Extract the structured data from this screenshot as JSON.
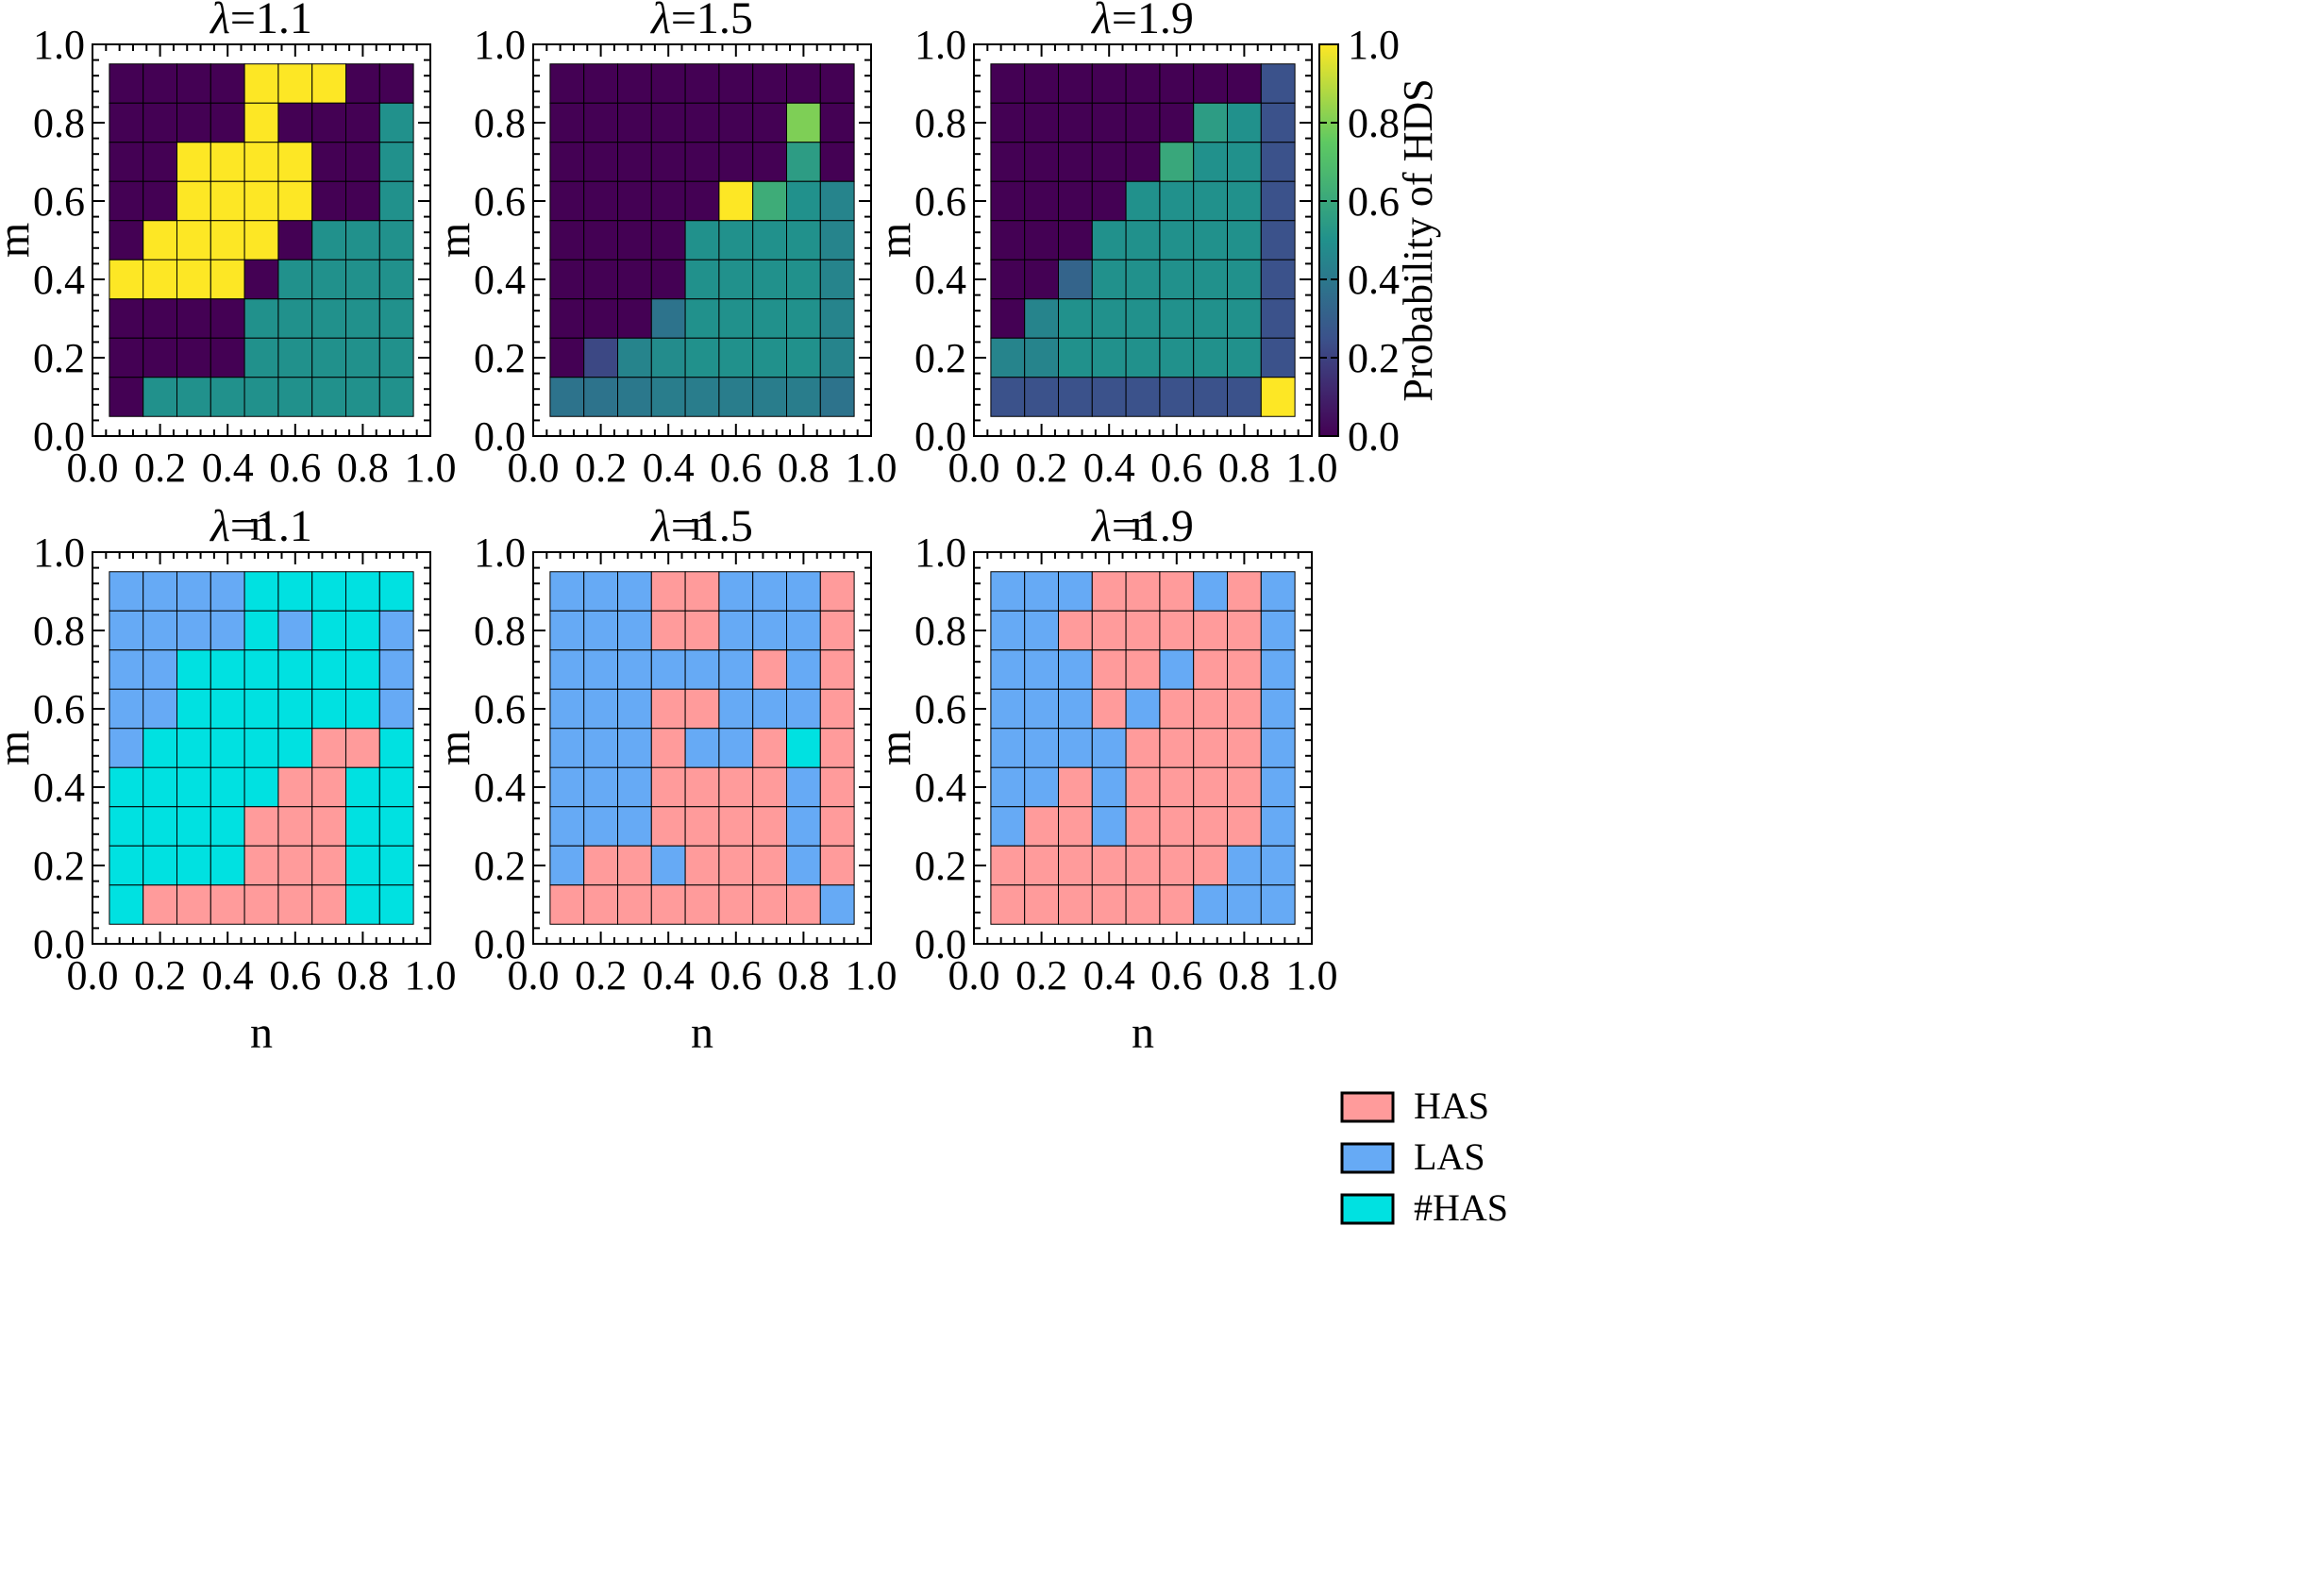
{
  "colors": {
    "HAS": "#FF9B9B",
    "LAS": "#66AAF5",
    "#HAS": "#00E1E1",
    "viridis_stops": [
      "#440154",
      "#3b528b",
      "#21918c",
      "#5ec962",
      "#fde725"
    ]
  },
  "chart_data": [
    {
      "type": "heatmap",
      "title_symbol": "λ",
      "title_value": "=1.1",
      "xlabel": "n",
      "ylabel": "m",
      "xlim": [
        0.0,
        1.0
      ],
      "ylim": [
        0.0,
        1.0
      ],
      "xticks": [
        "0.0",
        "0.2",
        "0.4",
        "0.6",
        "0.8",
        "1.0"
      ],
      "yticks": [
        "0.0",
        "0.2",
        "0.4",
        "0.6",
        "0.8",
        "1.0"
      ],
      "n_values": [
        0.1,
        0.2,
        0.3,
        0.4,
        0.5,
        0.6,
        0.7,
        0.8,
        0.9
      ],
      "m_values": [
        0.1,
        0.2,
        0.3,
        0.4,
        0.5,
        0.6,
        0.7,
        0.8,
        0.9
      ],
      "grid_rows_top_to_bottom": [
        [
          0,
          0,
          0,
          0,
          1,
          1,
          1,
          0,
          0
        ],
        [
          0,
          0,
          0,
          0,
          1,
          0,
          0,
          0,
          0.5
        ],
        [
          0,
          0,
          1,
          1,
          1,
          1,
          0,
          0,
          0.5
        ],
        [
          0,
          0,
          1,
          1,
          1,
          1,
          0,
          0,
          0.5
        ],
        [
          0,
          1,
          1,
          1,
          1,
          0,
          0.5,
          0.5,
          0.5
        ],
        [
          1,
          1,
          1,
          1,
          0,
          0.5,
          0.5,
          0.5,
          0.5
        ],
        [
          0,
          0,
          0,
          0,
          0.5,
          0.5,
          0.5,
          0.5,
          0.5
        ],
        [
          0,
          0,
          0,
          0,
          0.5,
          0.5,
          0.5,
          0.5,
          0.5
        ],
        [
          0,
          0.5,
          0.5,
          0.5,
          0.5,
          0.5,
          0.5,
          0.5,
          0.5
        ]
      ]
    },
    {
      "type": "heatmap",
      "title_symbol": "λ",
      "title_value": "=1.5",
      "xlabel": "n",
      "ylabel": "m",
      "xlim": [
        0.0,
        1.0
      ],
      "ylim": [
        0.0,
        1.0
      ],
      "xticks": [
        "0.0",
        "0.2",
        "0.4",
        "0.6",
        "0.8",
        "1.0"
      ],
      "yticks": [
        "0.0",
        "0.2",
        "0.4",
        "0.6",
        "0.8",
        "1.0"
      ],
      "n_values": [
        0.1,
        0.2,
        0.3,
        0.4,
        0.5,
        0.6,
        0.7,
        0.8,
        0.9
      ],
      "m_values": [
        0.1,
        0.2,
        0.3,
        0.4,
        0.5,
        0.6,
        0.7,
        0.8,
        0.9
      ],
      "grid_rows_top_to_bottom": [
        [
          0,
          0,
          0,
          0,
          0,
          0,
          0,
          0,
          0
        ],
        [
          0,
          0,
          0,
          0,
          0,
          0,
          0,
          0.8,
          0
        ],
        [
          0,
          0,
          0,
          0,
          0,
          0,
          0,
          0.55,
          0
        ],
        [
          0,
          0,
          0,
          0,
          0,
          1,
          0.62,
          0.5,
          0.45
        ],
        [
          0,
          0,
          0,
          0,
          0.5,
          0.5,
          0.5,
          0.5,
          0.45
        ],
        [
          0,
          0,
          0,
          0,
          0.5,
          0.5,
          0.5,
          0.5,
          0.45
        ],
        [
          0,
          0,
          0,
          0.38,
          0.5,
          0.5,
          0.5,
          0.5,
          0.45
        ],
        [
          0,
          0.22,
          0.45,
          0.48,
          0.5,
          0.5,
          0.5,
          0.5,
          0.45
        ],
        [
          0.38,
          0.38,
          0.4,
          0.42,
          0.42,
          0.42,
          0.42,
          0.42,
          0.38
        ]
      ]
    },
    {
      "type": "heatmap",
      "title_symbol": "λ",
      "title_value": "=1.9",
      "xlabel": "n",
      "ylabel": "m",
      "xlim": [
        0.0,
        1.0
      ],
      "ylim": [
        0.0,
        1.0
      ],
      "xticks": [
        "0.0",
        "0.2",
        "0.4",
        "0.6",
        "0.8",
        "1.0"
      ],
      "yticks": [
        "0.0",
        "0.2",
        "0.4",
        "0.6",
        "0.8",
        "1.0"
      ],
      "n_values": [
        0.1,
        0.2,
        0.3,
        0.4,
        0.5,
        0.6,
        0.7,
        0.8,
        0.9
      ],
      "m_values": [
        0.1,
        0.2,
        0.3,
        0.4,
        0.5,
        0.6,
        0.7,
        0.8,
        0.9
      ],
      "colorbar": {
        "label": "Probability of HDS",
        "ticks": [
          "0.0",
          "0.2",
          "0.4",
          "0.6",
          "0.8",
          "1.0"
        ],
        "range": [
          0.0,
          1.0
        ]
      },
      "grid_rows_top_to_bottom": [
        [
          0,
          0,
          0,
          0,
          0,
          0,
          0,
          0,
          0.25
        ],
        [
          0,
          0,
          0,
          0,
          0,
          0,
          0.55,
          0.5,
          0.25
        ],
        [
          0,
          0,
          0,
          0,
          0,
          0.6,
          0.5,
          0.5,
          0.25
        ],
        [
          0,
          0,
          0,
          0,
          0.5,
          0.5,
          0.5,
          0.5,
          0.25
        ],
        [
          0,
          0,
          0,
          0.5,
          0.5,
          0.5,
          0.5,
          0.5,
          0.25
        ],
        [
          0,
          0,
          0.32,
          0.5,
          0.5,
          0.5,
          0.5,
          0.5,
          0.25
        ],
        [
          0,
          0.45,
          0.5,
          0.5,
          0.5,
          0.5,
          0.5,
          0.5,
          0.25
        ],
        [
          0.45,
          0.45,
          0.5,
          0.5,
          0.5,
          0.5,
          0.5,
          0.5,
          0.25
        ],
        [
          0.25,
          0.25,
          0.25,
          0.25,
          0.25,
          0.25,
          0.25,
          0.25,
          1
        ]
      ]
    },
    {
      "type": "heatmap",
      "title_symbol": "λ",
      "title_value": "=1.1",
      "xlabel": "n",
      "ylabel": "m",
      "xlim": [
        0.0,
        1.0
      ],
      "ylim": [
        0.0,
        1.0
      ],
      "xticks": [
        "0.0",
        "0.2",
        "0.4",
        "0.6",
        "0.8",
        "1.0"
      ],
      "yticks": [
        "0.0",
        "0.2",
        "0.4",
        "0.6",
        "0.8",
        "1.0"
      ],
      "n_values": [
        0.1,
        0.2,
        0.3,
        0.4,
        0.5,
        0.6,
        0.7,
        0.8,
        0.9
      ],
      "m_values": [
        0.1,
        0.2,
        0.3,
        0.4,
        0.5,
        0.6,
        0.7,
        0.8,
        0.9
      ],
      "categorical": true,
      "grid_rows_top_to_bottom": [
        [
          "LAS",
          "LAS",
          "LAS",
          "LAS",
          "#HAS",
          "#HAS",
          "#HAS",
          "#HAS",
          "#HAS"
        ],
        [
          "LAS",
          "LAS",
          "LAS",
          "LAS",
          "#HAS",
          "LAS",
          "#HAS",
          "#HAS",
          "LAS"
        ],
        [
          "LAS",
          "LAS",
          "#HAS",
          "#HAS",
          "#HAS",
          "#HAS",
          "#HAS",
          "#HAS",
          "LAS"
        ],
        [
          "LAS",
          "LAS",
          "#HAS",
          "#HAS",
          "#HAS",
          "#HAS",
          "#HAS",
          "#HAS",
          "LAS"
        ],
        [
          "LAS",
          "#HAS",
          "#HAS",
          "#HAS",
          "#HAS",
          "#HAS",
          "HAS",
          "HAS",
          "#HAS"
        ],
        [
          "#HAS",
          "#HAS",
          "#HAS",
          "#HAS",
          "#HAS",
          "HAS",
          "HAS",
          "#HAS",
          "#HAS"
        ],
        [
          "#HAS",
          "#HAS",
          "#HAS",
          "#HAS",
          "HAS",
          "HAS",
          "HAS",
          "#HAS",
          "#HAS"
        ],
        [
          "#HAS",
          "#HAS",
          "#HAS",
          "#HAS",
          "HAS",
          "HAS",
          "HAS",
          "#HAS",
          "#HAS"
        ],
        [
          "#HAS",
          "HAS",
          "HAS",
          "HAS",
          "HAS",
          "HAS",
          "HAS",
          "#HAS",
          "#HAS"
        ]
      ]
    },
    {
      "type": "heatmap",
      "title_symbol": "λ",
      "title_value": "=1.5",
      "xlabel": "n",
      "ylabel": "m",
      "xlim": [
        0.0,
        1.0
      ],
      "ylim": [
        0.0,
        1.0
      ],
      "xticks": [
        "0.0",
        "0.2",
        "0.4",
        "0.6",
        "0.8",
        "1.0"
      ],
      "yticks": [
        "0.0",
        "0.2",
        "0.4",
        "0.6",
        "0.8",
        "1.0"
      ],
      "n_values": [
        0.1,
        0.2,
        0.3,
        0.4,
        0.5,
        0.6,
        0.7,
        0.8,
        0.9
      ],
      "m_values": [
        0.1,
        0.2,
        0.3,
        0.4,
        0.5,
        0.6,
        0.7,
        0.8,
        0.9
      ],
      "categorical": true,
      "grid_rows_top_to_bottom": [
        [
          "LAS",
          "LAS",
          "LAS",
          "HAS",
          "HAS",
          "LAS",
          "LAS",
          "LAS",
          "HAS"
        ],
        [
          "LAS",
          "LAS",
          "LAS",
          "HAS",
          "HAS",
          "LAS",
          "LAS",
          "LAS",
          "HAS"
        ],
        [
          "LAS",
          "LAS",
          "LAS",
          "LAS",
          "LAS",
          "LAS",
          "HAS",
          "LAS",
          "HAS"
        ],
        [
          "LAS",
          "LAS",
          "LAS",
          "HAS",
          "HAS",
          "LAS",
          "LAS",
          "LAS",
          "HAS"
        ],
        [
          "LAS",
          "LAS",
          "LAS",
          "HAS",
          "LAS",
          "LAS",
          "HAS",
          "#HAS",
          "HAS"
        ],
        [
          "LAS",
          "LAS",
          "LAS",
          "HAS",
          "HAS",
          "HAS",
          "HAS",
          "LAS",
          "HAS"
        ],
        [
          "LAS",
          "LAS",
          "LAS",
          "HAS",
          "HAS",
          "HAS",
          "HAS",
          "LAS",
          "HAS"
        ],
        [
          "LAS",
          "HAS",
          "HAS",
          "LAS",
          "HAS",
          "HAS",
          "HAS",
          "LAS",
          "HAS"
        ],
        [
          "HAS",
          "HAS",
          "HAS",
          "HAS",
          "HAS",
          "HAS",
          "HAS",
          "HAS",
          "LAS"
        ]
      ]
    },
    {
      "type": "heatmap",
      "title_symbol": "λ",
      "title_value": "=1.9",
      "xlabel": "n",
      "ylabel": "m",
      "xlim": [
        0.0,
        1.0
      ],
      "ylim": [
        0.0,
        1.0
      ],
      "xticks": [
        "0.0",
        "0.2",
        "0.4",
        "0.6",
        "0.8",
        "1.0"
      ],
      "yticks": [
        "0.0",
        "0.2",
        "0.4",
        "0.6",
        "0.8",
        "1.0"
      ],
      "n_values": [
        0.1,
        0.2,
        0.3,
        0.4,
        0.5,
        0.6,
        0.7,
        0.8,
        0.9
      ],
      "m_values": [
        0.1,
        0.2,
        0.3,
        0.4,
        0.5,
        0.6,
        0.7,
        0.8,
        0.9
      ],
      "categorical": true,
      "legend": {
        "position": "right",
        "entries": [
          "HAS",
          "LAS",
          "#HAS"
        ]
      },
      "grid_rows_top_to_bottom": [
        [
          "LAS",
          "LAS",
          "LAS",
          "HAS",
          "HAS",
          "HAS",
          "LAS",
          "HAS",
          "LAS"
        ],
        [
          "LAS",
          "LAS",
          "HAS",
          "HAS",
          "HAS",
          "HAS",
          "HAS",
          "HAS",
          "LAS"
        ],
        [
          "LAS",
          "LAS",
          "LAS",
          "HAS",
          "HAS",
          "LAS",
          "HAS",
          "HAS",
          "LAS"
        ],
        [
          "LAS",
          "LAS",
          "LAS",
          "HAS",
          "LAS",
          "HAS",
          "HAS",
          "HAS",
          "LAS"
        ],
        [
          "LAS",
          "LAS",
          "LAS",
          "LAS",
          "HAS",
          "HAS",
          "HAS",
          "HAS",
          "LAS"
        ],
        [
          "LAS",
          "LAS",
          "HAS",
          "LAS",
          "HAS",
          "HAS",
          "HAS",
          "HAS",
          "LAS"
        ],
        [
          "LAS",
          "HAS",
          "HAS",
          "LAS",
          "HAS",
          "HAS",
          "HAS",
          "HAS",
          "LAS"
        ],
        [
          "HAS",
          "HAS",
          "HAS",
          "HAS",
          "HAS",
          "HAS",
          "HAS",
          "LAS",
          "LAS"
        ],
        [
          "HAS",
          "HAS",
          "HAS",
          "HAS",
          "HAS",
          "HAS",
          "LAS",
          "LAS",
          "LAS"
        ]
      ]
    }
  ]
}
